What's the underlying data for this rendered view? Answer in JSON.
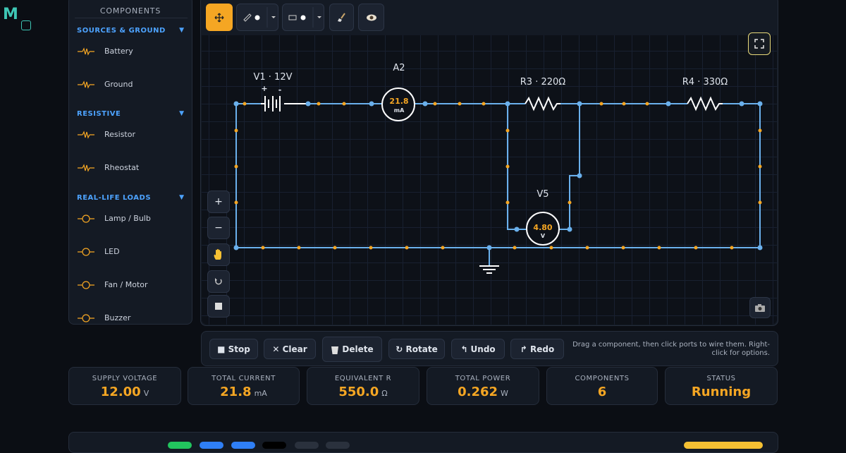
{
  "logo": "M",
  "sidebar": {
    "title": "COMPONENTS",
    "groups": [
      {
        "name": "SOURCES & GROUND",
        "toggle": "▼",
        "items": [
          "Battery",
          "Ground"
        ]
      },
      {
        "name": "RESISTIVE",
        "toggle": "▼",
        "items": [
          "Resistor",
          "Rheostat"
        ]
      },
      {
        "name": "REAL-LIFE LOADS",
        "toggle": "▼",
        "items": [
          "Lamp / Bulb",
          "LED",
          "Fan / Motor",
          "Buzzer"
        ]
      }
    ]
  },
  "tools": {
    "zoom_in": "+",
    "zoom_out": "−"
  },
  "circuit": {
    "source": {
      "label": "V1 · 12V",
      "plus": "+",
      "minus": "-"
    },
    "ammeter": {
      "label": "A2",
      "reading": "21.8",
      "unit": "mA"
    },
    "r3": "R3 · 220Ω",
    "r4": "R4 · 330Ω",
    "voltmeter": {
      "label": "V5",
      "reading": "4.80",
      "unit": "V"
    }
  },
  "actions": [
    "■ Stop",
    "✕ Clear",
    "Delete",
    "↻ Rotate",
    "↰ Undo",
    "↱ Redo"
  ],
  "hint": "Drag a component, then click ports to wire them. Right-click for options.",
  "stats": [
    {
      "label": "SUPPLY VOLTAGE",
      "value": "12.00",
      "unit": "V"
    },
    {
      "label": "TOTAL CURRENT",
      "value": "21.8",
      "unit": "mA"
    },
    {
      "label": "EQUIVALENT R",
      "value": "550.0",
      "unit": "Ω"
    },
    {
      "label": "TOTAL POWER",
      "value": "0.262",
      "unit": "W"
    },
    {
      "label": "COMPONENTS",
      "value": "6"
    },
    {
      "label": "STATUS",
      "value": "Running"
    }
  ]
}
